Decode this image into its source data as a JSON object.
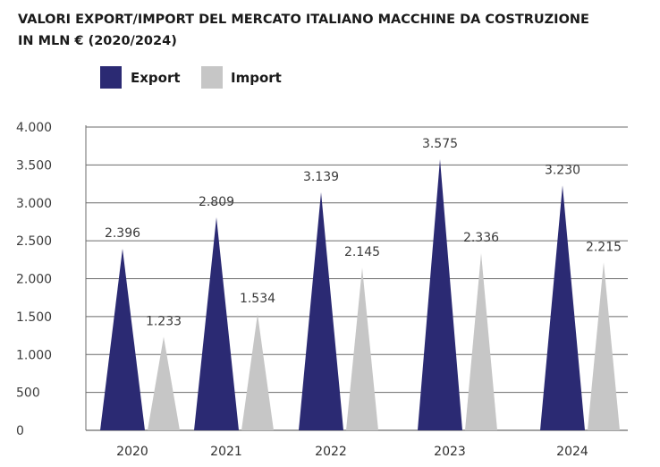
{
  "chart_data": {
    "type": "bar",
    "title_lines": [
      "VALORI EXPORT/IMPORT DEL MERCATO ITALIANO MACCHINE DA COSTRUZIONE",
      "IN MLN € (2020/2024)"
    ],
    "categories": [
      "2020",
      "2021",
      "2022",
      "2023",
      "2024"
    ],
    "series": [
      {
        "name": "Export",
        "values": [
          2396,
          2809,
          3139,
          3575,
          3230
        ],
        "labels": [
          "2.396",
          "2.809",
          "3.139",
          "3.575",
          "3.230"
        ]
      },
      {
        "name": "Import",
        "values": [
          1233,
          1534,
          2145,
          2336,
          2215
        ],
        "labels": [
          "1.233",
          "1.534",
          "2.145",
          "2.336",
          "2.215"
        ]
      }
    ],
    "ylim": [
      0,
      4000
    ],
    "yticks": [
      0,
      500,
      1000,
      1500,
      2000,
      2500,
      3000,
      3500,
      4000
    ],
    "ytick_labels": [
      "0",
      "500",
      "1.000",
      "1.500",
      "2.000",
      "2.500",
      "3.000",
      "3.500",
      "4.000"
    ],
    "grid": true,
    "legend_position": "top-left",
    "bar_shape": "triangle",
    "colors": {
      "Export": "#2b2a73",
      "Import": "#c6c6c6",
      "grid": "#6b6b6b"
    }
  }
}
